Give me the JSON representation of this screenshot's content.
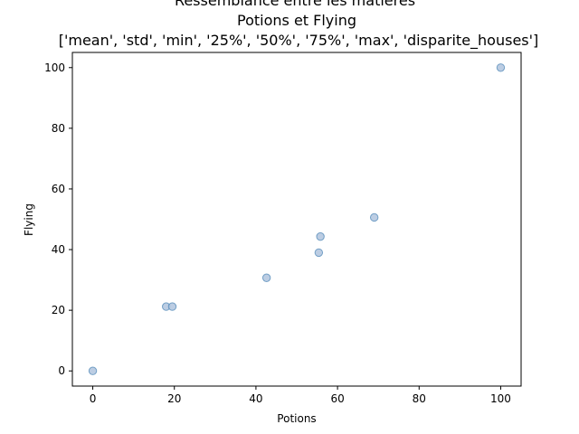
{
  "chart_data": {
    "type": "scatter",
    "title_lines": [
      "Ressemblance entre les matières",
      "Potions et Flying",
      "['mean', 'std', 'min', '25%', '50%', '75%', 'max', 'disparite_houses']"
    ],
    "xlabel": "Potions",
    "ylabel": "Flying",
    "xlim": [
      -5,
      105
    ],
    "ylim": [
      -5,
      105
    ],
    "xticks": [
      0,
      20,
      40,
      60,
      80,
      100
    ],
    "yticks": [
      0,
      20,
      40,
      60,
      80,
      100
    ],
    "grid": false,
    "marker_fill": "#b0c4de",
    "marker_edge": "#4682b4",
    "points": [
      {
        "x": 0,
        "y": 0
      },
      {
        "x": 18,
        "y": 21.2
      },
      {
        "x": 19.5,
        "y": 21.2
      },
      {
        "x": 42.6,
        "y": 30.7
      },
      {
        "x": 55.4,
        "y": 39.0
      },
      {
        "x": 55.8,
        "y": 44.3
      },
      {
        "x": 69.0,
        "y": 50.6
      },
      {
        "x": 100,
        "y": 100
      }
    ]
  }
}
